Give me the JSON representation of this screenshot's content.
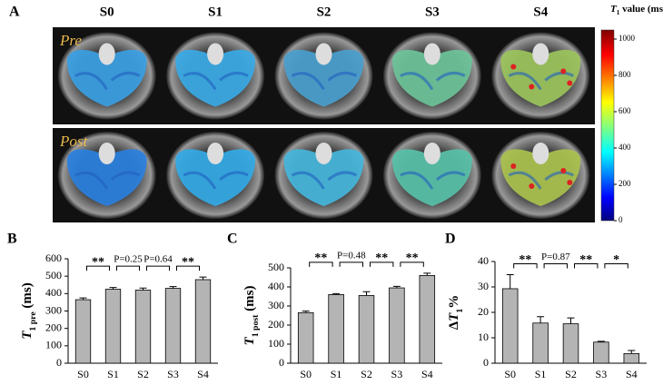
{
  "figure": {
    "panel_label": "A",
    "stages": [
      "S0",
      "S1",
      "S2",
      "S3",
      "S4"
    ],
    "rows": [
      "Pre",
      "Post"
    ],
    "colorbar": {
      "label": {
        "symbol": "T",
        "subscript": "1",
        "unit": " value (ms)"
      },
      "lim": [
        0,
        1050
      ],
      "ticks": [
        0,
        200,
        400,
        600,
        800,
        1000
      ]
    }
  },
  "chart_data": [
    {
      "type": "bar",
      "panel_label": "B",
      "y_label": {
        "symbol": "T",
        "subscript": "1 pre",
        "unit": " (ms)"
      },
      "categories": [
        "S0",
        "S1",
        "S2",
        "S3",
        "S4"
      ],
      "values": [
        365,
        425,
        420,
        430,
        480
      ],
      "errors": [
        10,
        10,
        12,
        10,
        15
      ],
      "color": "#b4b4b4",
      "ylim": [
        0,
        600
      ],
      "yticks": [
        0,
        100,
        200,
        300,
        400,
        500,
        600
      ],
      "annotations": [
        "**",
        "P=0.25",
        "P=0.64",
        "**"
      ]
    },
    {
      "type": "bar",
      "panel_label": "C",
      "y_label": {
        "symbol": "T",
        "subscript": "1 post",
        "unit": " (ms)"
      },
      "categories": [
        "S0",
        "S1",
        "S2",
        "S3",
        "S4"
      ],
      "values": [
        265,
        360,
        355,
        395,
        460
      ],
      "errors": [
        8,
        5,
        20,
        8,
        12
      ],
      "color": "#b4b4b4",
      "ylim": [
        0,
        500
      ],
      "yticks": [
        0,
        100,
        200,
        300,
        400,
        500
      ],
      "annotations": [
        "**",
        "P=0.48",
        "**",
        "**"
      ]
    },
    {
      "type": "bar",
      "panel_label": "D",
      "y_label": {
        "prefix": "Δ",
        "symbol": "T",
        "subscript": "1",
        "unit": "%"
      },
      "categories": [
        "S0",
        "S1",
        "S2",
        "S3",
        "S4"
      ],
      "values": [
        29.3,
        15.8,
        15.5,
        8.3,
        3.8
      ],
      "errors": [
        5.5,
        2.5,
        2.3,
        0.3,
        1.2
      ],
      "color": "#b4b4b4",
      "ylim": [
        0,
        40
      ],
      "yticks": [
        0,
        10,
        20,
        30,
        40
      ],
      "annotations": [
        "**",
        "P=0.87",
        "**",
        "*"
      ]
    }
  ]
}
